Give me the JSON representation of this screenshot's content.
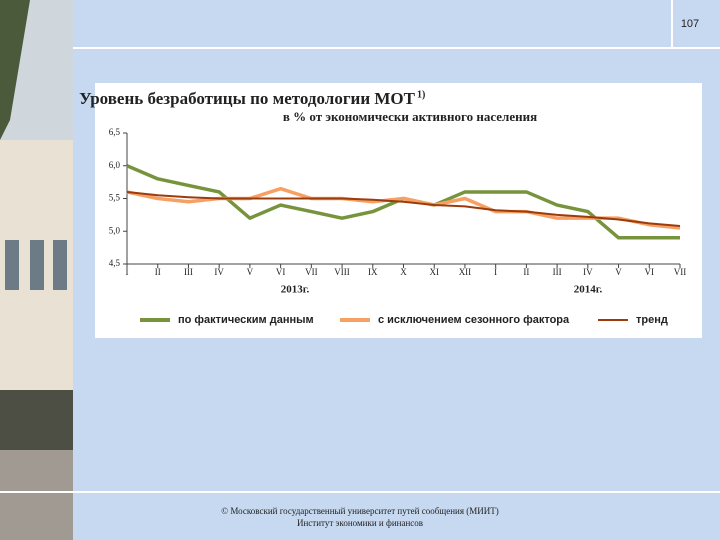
{
  "page_number": "107",
  "footer": {
    "line1": "© Московский государственный университет путей сообщения (МИИТ)",
    "line2": "Институт экономики и финансов"
  },
  "chart_data": {
    "type": "line",
    "title": "Уровень безработицы по методологии МОТ",
    "title_note": "1)",
    "subtitle": "в % от экономически активного населения",
    "categories": [
      "I",
      "II",
      "III",
      "IV",
      "V",
      "VI",
      "VII",
      "VIII",
      "IX",
      "X",
      "XI",
      "XII",
      "I",
      "II",
      "III",
      "IV",
      "V",
      "VI",
      "VII"
    ],
    "annotations": [
      "2013г.",
      "2014г."
    ],
    "series": [
      {
        "name": "по фактическим данным",
        "color": "#77933c",
        "values": [
          6.0,
          5.8,
          5.7,
          5.6,
          5.2,
          5.4,
          5.3,
          5.2,
          5.3,
          5.5,
          5.4,
          5.6,
          5.6,
          5.6,
          5.4,
          5.3,
          4.9,
          4.9,
          4.9
        ]
      },
      {
        "name": "с исключением сезонного фактора",
        "color": "#f7a063",
        "values": [
          5.6,
          5.5,
          5.45,
          5.5,
          5.5,
          5.65,
          5.5,
          5.5,
          5.45,
          5.5,
          5.4,
          5.5,
          5.3,
          5.3,
          5.2,
          5.2,
          5.2,
          5.1,
          5.05
        ]
      },
      {
        "name": "тренд",
        "color": "#9c3c0c",
        "values": [
          5.6,
          5.55,
          5.52,
          5.5,
          5.5,
          5.5,
          5.5,
          5.5,
          5.48,
          5.45,
          5.4,
          5.38,
          5.32,
          5.3,
          5.25,
          5.22,
          5.18,
          5.12,
          5.08
        ]
      }
    ],
    "ylim": [
      4.5,
      6.5
    ],
    "yticks": [
      {
        "value": 4.5,
        "label": "4,5"
      },
      {
        "value": 5.0,
        "label": "5,0"
      },
      {
        "value": 5.5,
        "label": "5,5"
      },
      {
        "value": 6.0,
        "label": "6,0"
      },
      {
        "value": 6.5,
        "label": "6,5"
      }
    ],
    "grid": false,
    "legend": "bottom"
  }
}
